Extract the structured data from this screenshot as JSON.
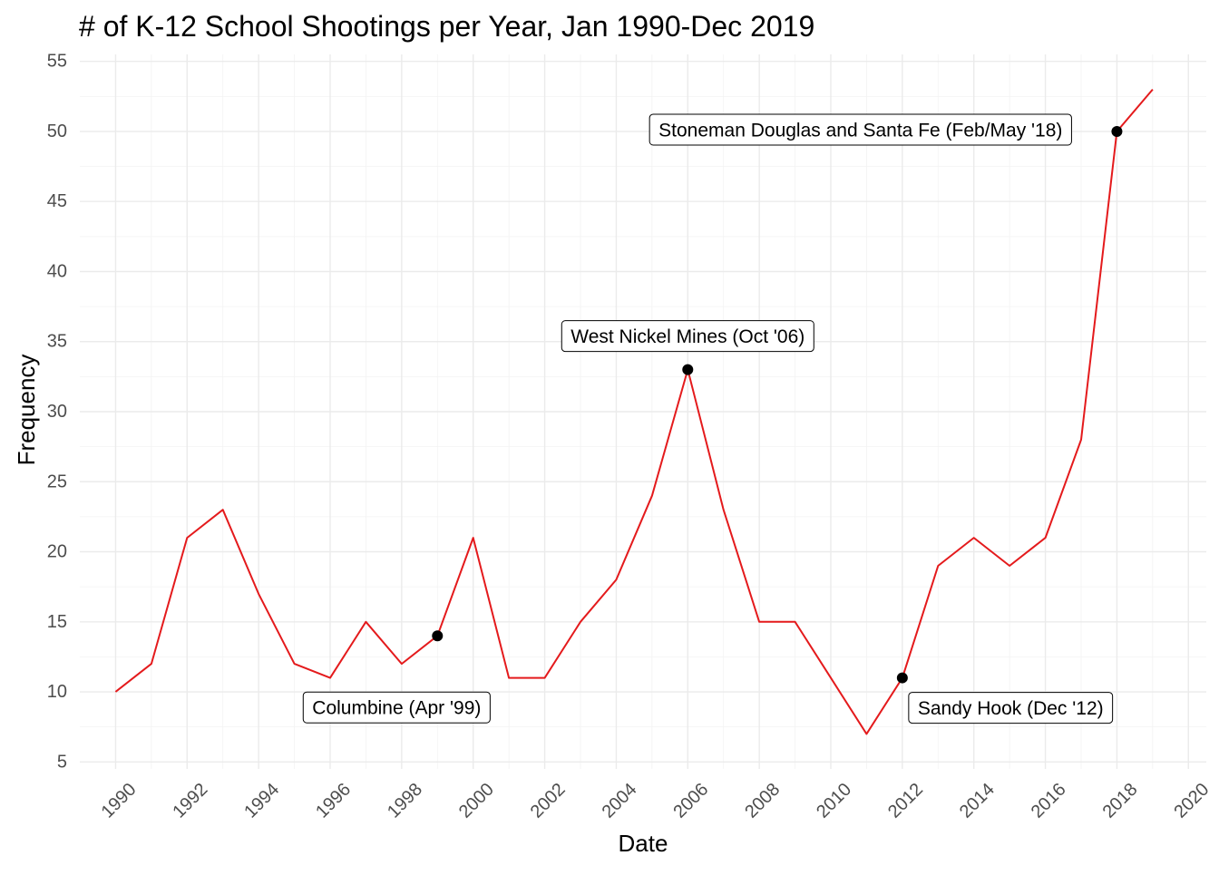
{
  "chart_data": {
    "type": "line",
    "title": "# of K-12 School Shootings per Year, Jan 1990-Dec 2019",
    "xlabel": "Date",
    "ylabel": "Frequency",
    "x": [
      1990,
      1991,
      1992,
      1993,
      1994,
      1995,
      1996,
      1997,
      1998,
      1999,
      2000,
      2001,
      2002,
      2003,
      2004,
      2005,
      2006,
      2007,
      2008,
      2009,
      2010,
      2011,
      2012,
      2013,
      2014,
      2015,
      2016,
      2017,
      2018,
      2019
    ],
    "series": [
      {
        "values": [
          10,
          12,
          21,
          23,
          17,
          12,
          11,
          15,
          12,
          14,
          21,
          11,
          11,
          15,
          18,
          24,
          33,
          23,
          15,
          15,
          11,
          7,
          11,
          19,
          21,
          19,
          21,
          28,
          50,
          53
        ],
        "color": "#e41a1c"
      }
    ],
    "xlim": [
      1989,
      2020.5
    ],
    "ylim": [
      4.5,
      55.5
    ],
    "xticks": [
      "1990",
      "1992",
      "1994",
      "1996",
      "1998",
      "2000",
      "2002",
      "2004",
      "2006",
      "2008",
      "2010",
      "2012",
      "2014",
      "2016",
      "2018",
      "2020"
    ],
    "yticks": [
      "5",
      "10",
      "15",
      "20",
      "25",
      "30",
      "35",
      "40",
      "45",
      "50",
      "55"
    ],
    "grid": true,
    "highlight_points": [
      {
        "x": 1999,
        "y": 14,
        "label": "Columbine (Apr '99)",
        "label_side": "below-left"
      },
      {
        "x": 2006,
        "y": 33,
        "label": "West Nickel Mines (Oct '06)",
        "label_side": "above"
      },
      {
        "x": 2012,
        "y": 11,
        "label": "Sandy Hook (Dec '12)",
        "label_side": "below-right"
      },
      {
        "x": 2018,
        "y": 50,
        "label": "Stoneman Douglas and Santa Fe (Feb/May '18)",
        "label_side": "left"
      }
    ],
    "point_color": "#000000"
  }
}
